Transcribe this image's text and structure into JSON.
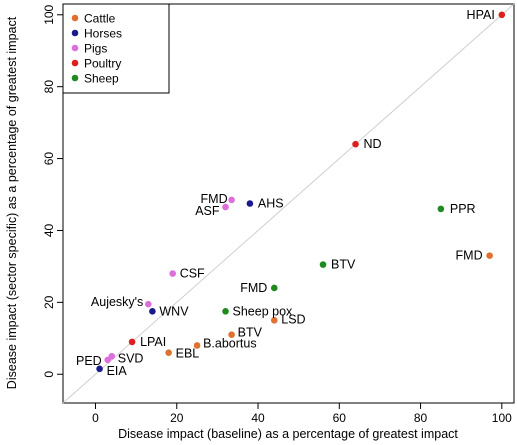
{
  "chart_data": {
    "type": "scatter",
    "xlabel": "Disease impact (baseline) as a percentage of greatest impact",
    "ylabel": "Disease impact (sector specific) as a percentage of greatest impact",
    "xlim": [
      -8,
      103
    ],
    "ylim": [
      -8,
      103
    ],
    "xticks": [
      0,
      20,
      40,
      60,
      80,
      100
    ],
    "yticks": [
      0,
      20,
      40,
      60,
      80,
      100
    ],
    "reference_line": "y = x",
    "legend_position": "top-left",
    "groups": [
      {
        "name": "Cattle",
        "color": "#e07030"
      },
      {
        "name": "Horses",
        "color": "#1a1a8c"
      },
      {
        "name": "Pigs",
        "color": "#dd6fdd"
      },
      {
        "name": "Poultry",
        "color": "#dd1f1f"
      },
      {
        "name": "Sheep",
        "color": "#1f8a1f"
      }
    ],
    "points": [
      {
        "label": "HPAI",
        "group": "Poultry",
        "x": 100,
        "y": 100
      },
      {
        "label": "ND",
        "group": "Poultry",
        "x": 64,
        "y": 64
      },
      {
        "label": "LPAI",
        "group": "Poultry",
        "x": 9,
        "y": 9
      },
      {
        "label": "FMD",
        "group": "Pigs",
        "x": 33.5,
        "y": 48.5
      },
      {
        "label": "ASF",
        "group": "Pigs",
        "x": 32,
        "y": 46.5
      },
      {
        "label": "CSF",
        "group": "Pigs",
        "x": 19,
        "y": 28
      },
      {
        "label": "Aujesky's",
        "group": "Pigs",
        "x": 13,
        "y": 19.5
      },
      {
        "label": "SVD",
        "group": "Pigs",
        "x": 4,
        "y": 5
      },
      {
        "label": "PED",
        "group": "Pigs",
        "x": 3,
        "y": 4
      },
      {
        "label": "AHS",
        "group": "Horses",
        "x": 38,
        "y": 47.5
      },
      {
        "label": "WNV",
        "group": "Horses",
        "x": 14,
        "y": 17.5
      },
      {
        "label": "EIA",
        "group": "Horses",
        "x": 1,
        "y": 1.5
      },
      {
        "label": "PPR",
        "group": "Sheep",
        "x": 85,
        "y": 46
      },
      {
        "label": "BTV",
        "group": "Sheep",
        "x": 56,
        "y": 30.5
      },
      {
        "label": "FMD",
        "group": "Sheep",
        "x": 44,
        "y": 24
      },
      {
        "label": "Sheep pox",
        "group": "Sheep",
        "x": 32,
        "y": 17.5
      },
      {
        "label": "FMD",
        "group": "Cattle",
        "x": 97,
        "y": 33
      },
      {
        "label": "LSD",
        "group": "Cattle",
        "x": 44,
        "y": 15
      },
      {
        "label": "BTV",
        "group": "Cattle",
        "x": 33.5,
        "y": 11
      },
      {
        "label": "B.abortus",
        "group": "Cattle",
        "x": 25,
        "y": 8
      },
      {
        "label": "EBL",
        "group": "Cattle",
        "x": 18,
        "y": 6
      }
    ]
  }
}
